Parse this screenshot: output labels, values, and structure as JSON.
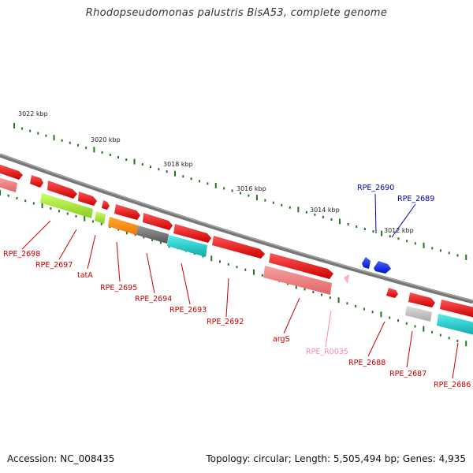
{
  "title": "Rhodopseudomonas palustris BisA53, complete genome",
  "footer": {
    "accession": "Accession: NC_008435",
    "summary": "Topology: circular; Length: 5,505,494 bp; Genes: 4,935"
  },
  "scale_labels": [
    "3022 kbp",
    "3020 kbp",
    "3018 kbp",
    "3016 kbp",
    "3014 kbp",
    "3012 kbp"
  ],
  "genes": [
    {
      "name": "RPE_2698",
      "color": "#dd0000"
    },
    {
      "name": "RPE_2697",
      "color": "#dd0000"
    },
    {
      "name": "tatA",
      "color": "#dd0000"
    },
    {
      "name": "RPE_2695",
      "color": "#dd0000"
    },
    {
      "name": "RPE_2694",
      "color": "#dd0000"
    },
    {
      "name": "RPE_2693",
      "color": "#dd0000"
    },
    {
      "name": "RPE_2692",
      "color": "#dd0000"
    },
    {
      "name": "argS",
      "color": "#dd0000"
    },
    {
      "name": "RPE_R0035",
      "color": "#ff88bb"
    },
    {
      "name": "RPE_2688",
      "color": "#dd0000"
    },
    {
      "name": "RPE_2687",
      "color": "#dd0000"
    },
    {
      "name": "RPE_2686",
      "color": "#dd0000"
    },
    {
      "name": "RPE_2690",
      "color": "#0000bb"
    },
    {
      "name": "RPE_2689",
      "color": "#0000bb"
    }
  ],
  "colors": {
    "backbone": "#888888",
    "tick": "#227722",
    "forward": "#ee0000",
    "reverse": "#0022ee",
    "rna": "#ffaacc",
    "cog_green": "#aaee44",
    "cog_orange": "#ff8800",
    "cog_gray": "#777777",
    "cog_cyan": "#22cccc",
    "cog_pink": "#ee8888",
    "cog_lightgray": "#bbbbbb"
  }
}
